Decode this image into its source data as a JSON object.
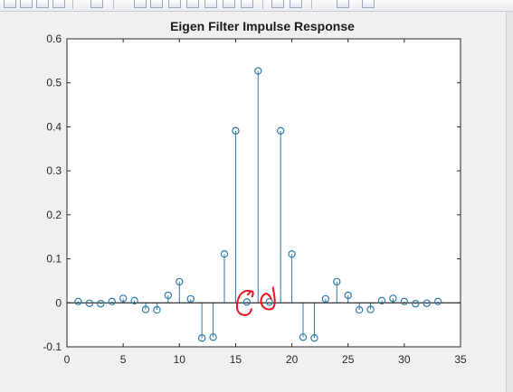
{
  "window": {
    "background": "#f0f0f0"
  },
  "chart_data": {
    "type": "stem",
    "title": "Eigen Filter Impulse Response",
    "xlabel": "",
    "ylabel": "",
    "xlim": [
      0,
      35
    ],
    "ylim": [
      -0.1,
      0.6
    ],
    "x_ticks": [
      "0",
      "5",
      "10",
      "15",
      "20",
      "25",
      "30",
      "35"
    ],
    "y_ticks": [
      "-0.1",
      "0",
      "0.1",
      "0.2",
      "0.3",
      "0.4",
      "0.5",
      "0.6"
    ],
    "grid": false,
    "legend": "none",
    "series": [
      {
        "color": "#2e7ca8",
        "x": [
          1,
          2,
          3,
          4,
          5,
          6,
          7,
          8,
          9,
          10,
          11,
          12,
          13,
          14,
          15,
          16,
          17,
          18,
          19,
          20,
          21,
          22,
          23,
          24,
          25,
          26,
          27,
          28,
          29,
          30,
          31,
          32,
          33
        ],
        "values": [
          0.003,
          -0.001,
          -0.002,
          0.003,
          0.01,
          0.005,
          -0.015,
          -0.016,
          0.017,
          0.048,
          0.009,
          -0.08,
          -0.078,
          0.111,
          0.391,
          0.002,
          0.527,
          0.002,
          0.391,
          0.111,
          -0.078,
          -0.08,
          0.009,
          0.048,
          0.017,
          -0.016,
          -0.015,
          0.005,
          0.01,
          0.003,
          -0.002,
          -0.001,
          0.003
        ]
      }
    ],
    "annotations": [
      {
        "type": "freehand-circle",
        "x": 16,
        "y": 0,
        "color": "#e8141c"
      },
      {
        "type": "freehand-circle",
        "x": 18,
        "y": 0,
        "color": "#e8141c"
      }
    ]
  }
}
